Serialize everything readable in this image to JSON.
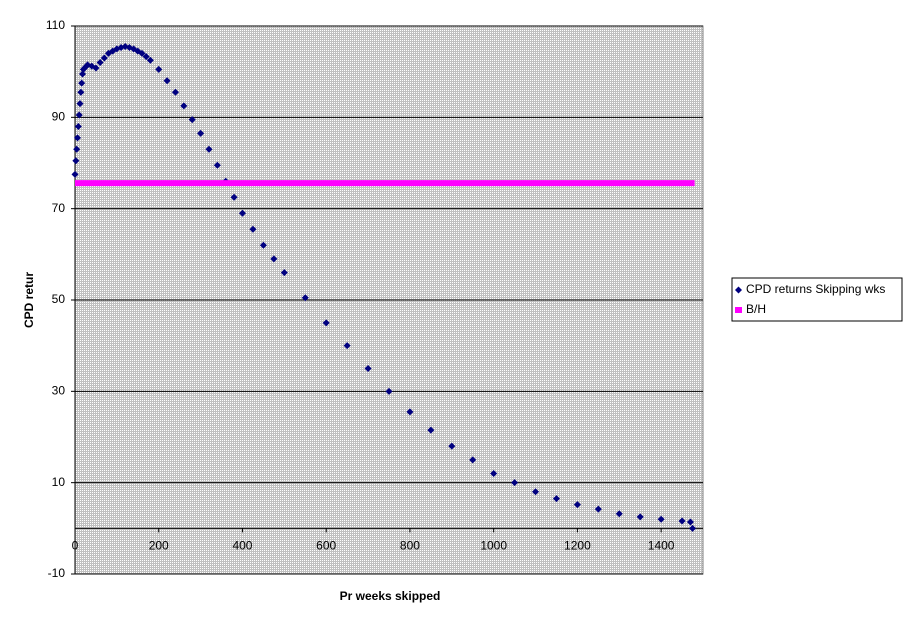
{
  "chart_data": {
    "type": "scatter",
    "xlabel": "Pr weeks skipped",
    "ylabel": "CPD retur",
    "xlim": [
      0,
      1500
    ],
    "xticks": [
      0,
      200,
      400,
      600,
      800,
      1000,
      1200,
      1400
    ],
    "ylim": [
      -10,
      110
    ],
    "yticks": [
      -10,
      10,
      30,
      50,
      70,
      90,
      110
    ],
    "grid": true,
    "legend": "right",
    "series": [
      {
        "name": "CPD returns Skipping wks",
        "color": "#000080",
        "marker": "diamond",
        "x": [
          0,
          2,
          4,
          6,
          8,
          10,
          12,
          14,
          16,
          18,
          20,
          25,
          30,
          40,
          50,
          60,
          70,
          80,
          90,
          100,
          110,
          120,
          130,
          140,
          150,
          160,
          170,
          180,
          200,
          220,
          240,
          260,
          280,
          300,
          320,
          340,
          360,
          380,
          400,
          425,
          450,
          475,
          500,
          550,
          600,
          650,
          700,
          750,
          800,
          850,
          900,
          950,
          1000,
          1050,
          1100,
          1150,
          1200,
          1250,
          1300,
          1350,
          1400,
          1450,
          1470,
          1475
        ],
        "values": [
          77.5,
          80.5,
          83,
          85.5,
          88,
          90.5,
          93,
          95.5,
          97.5,
          99.5,
          100.5,
          101,
          101.5,
          101.2,
          100.8,
          102,
          103,
          104,
          104.5,
          105,
          105.3,
          105.5,
          105.3,
          105,
          104.5,
          104,
          103.3,
          102.5,
          100.5,
          98,
          95.5,
          92.5,
          89.5,
          86.5,
          83,
          79.5,
          76,
          72.5,
          69,
          65.5,
          62,
          59,
          56,
          50.5,
          45,
          40,
          35,
          30,
          25.5,
          21.5,
          18,
          15,
          12,
          10,
          8,
          6.5,
          5.2,
          4.2,
          3.2,
          2.5,
          2,
          1.6,
          1.4,
          0
        ]
      },
      {
        "name": "B/H",
        "color": "#ff00ff",
        "marker": "line",
        "x": [
          0,
          1480
        ],
        "values": [
          75.6,
          75.6
        ]
      }
    ]
  }
}
